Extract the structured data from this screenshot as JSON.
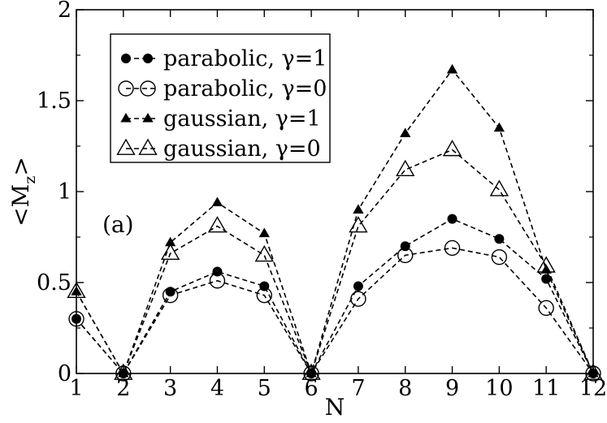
{
  "chart_data": {
    "type": "line",
    "xlabel": "N",
    "ylabel": "<M",
    "ylabel_subscript": "z",
    "ylabel_close": ">",
    "xlim": [
      1,
      12
    ],
    "ylim": [
      0,
      2
    ],
    "xticks": [
      "1",
      "2",
      "3",
      "4",
      "5",
      "6",
      "7",
      "8",
      "9",
      "10",
      "11",
      "12"
    ],
    "yticks": [
      "0",
      "0.5",
      "1",
      "1.5",
      "2"
    ],
    "grid": false,
    "legend_position": "top-left",
    "annotation": "(a)",
    "x": [
      1,
      2,
      3,
      4,
      5,
      6,
      7,
      8,
      9,
      10,
      11,
      12
    ],
    "series": [
      {
        "name": "parabolic, γ=1",
        "marker": "circle-filled",
        "values": [
          0.3,
          0.0,
          0.45,
          0.56,
          0.48,
          0.0,
          0.48,
          0.7,
          0.85,
          0.74,
          0.52,
          0.0
        ]
      },
      {
        "name": "parabolic, γ=0",
        "marker": "circle-open",
        "values": [
          0.3,
          0.0,
          0.43,
          0.51,
          0.43,
          0.0,
          0.41,
          0.65,
          0.69,
          0.64,
          0.36,
          0.0
        ]
      },
      {
        "name": "gaussian, γ=1",
        "marker": "triangle-filled",
        "values": [
          0.45,
          0.0,
          0.72,
          0.94,
          0.77,
          0.0,
          0.9,
          1.32,
          1.67,
          1.35,
          0.57,
          0.0
        ]
      },
      {
        "name": "gaussian, γ=0",
        "marker": "triangle-open",
        "values": [
          0.45,
          0.0,
          0.66,
          0.81,
          0.65,
          0.0,
          0.81,
          1.12,
          1.23,
          1.01,
          0.59,
          0.0
        ]
      }
    ],
    "colors": {
      "line": "#000000",
      "background": "#ffffff"
    }
  }
}
